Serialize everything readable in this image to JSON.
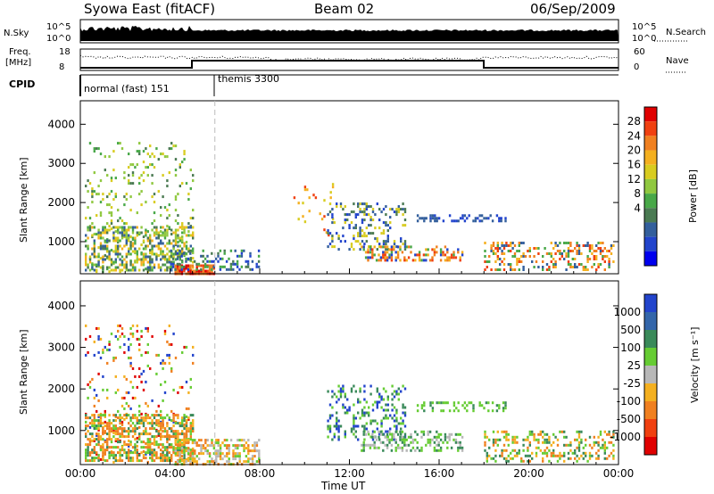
{
  "header": {
    "title": "Syowa East (fitACF)",
    "beam": "Beam 02",
    "date": "06/Sep/2009"
  },
  "nsky_panel": {
    "left_label": "N.Sky",
    "left_ticks": [
      "10^5",
      "10^0"
    ],
    "right_ticks": [
      "10^5",
      "10^0"
    ],
    "right_label": "N.Search"
  },
  "freq_panel": {
    "label_top": "Freq.",
    "label_bottom": "[MHz]",
    "left_ticks": [
      "18",
      "8"
    ],
    "right_ticks": [
      "60",
      "0"
    ],
    "right_label": "Nave"
  },
  "cpid_panel": {
    "label": "CPID",
    "modes": [
      {
        "name": "normal (fast) 151",
        "start_hour": 0
      },
      {
        "name": "themis 3300",
        "start_hour": 6
      }
    ]
  },
  "x_axis": {
    "label": "Time UT",
    "ticks": [
      "00:00",
      "04:00",
      "08:00",
      "12:00",
      "16:00",
      "20:00",
      "00:00"
    ],
    "range_hours": [
      0,
      24
    ]
  },
  "chart_data": [
    {
      "type": "heatmap",
      "name": "power",
      "ylabel": "Slant Range [km]",
      "ylim": [
        180,
        4600
      ],
      "yticks": [
        1000,
        2000,
        3000,
        4000
      ],
      "colorbar_label": "Power [dB]",
      "colorbar_ticks": [
        "28",
        "24",
        "20",
        "16",
        "12",
        "8",
        "4"
      ],
      "colorbar_colors": [
        "#e00000",
        "#f04010",
        "#f08020",
        "#f4b020",
        "#d8cc20",
        "#90c840",
        "#48a848",
        "#4a7a52",
        "#335f9c",
        "#2244cc",
        "#0000ee"
      ],
      "regions": [
        {
          "t": [
            0.2,
            5.0
          ],
          "r": [
            250,
            3550
          ],
          "density": 0.1,
          "colors": [
            6,
            7,
            5,
            4
          ]
        },
        {
          "t": [
            0.2,
            5.0
          ],
          "r": [
            300,
            1400
          ],
          "density": 0.45,
          "colors": [
            6,
            7,
            5,
            4,
            3,
            8
          ]
        },
        {
          "t": [
            4.2,
            6.0
          ],
          "r": [
            200,
            420
          ],
          "density": 0.85,
          "colors": [
            0,
            1,
            2
          ]
        },
        {
          "t": [
            4.0,
            8.0
          ],
          "r": [
            300,
            800
          ],
          "density": 0.3,
          "colors": [
            8,
            9,
            6,
            7
          ]
        },
        {
          "t": [
            9.5,
            11.5
          ],
          "r": [
            1200,
            2500
          ],
          "density": 0.05,
          "colors": [
            3,
            4,
            1
          ]
        },
        {
          "t": [
            11.0,
            14.5
          ],
          "r": [
            800,
            2000
          ],
          "density": 0.25,
          "colors": [
            8,
            9,
            7,
            4
          ]
        },
        {
          "t": [
            12.5,
            17.0
          ],
          "r": [
            500,
            900
          ],
          "density": 0.35,
          "colors": [
            1,
            2,
            3,
            9,
            6
          ]
        },
        {
          "t": [
            15.0,
            19.0
          ],
          "r": [
            1500,
            1700
          ],
          "density": 0.4,
          "colors": [
            8,
            9
          ]
        },
        {
          "t": [
            18.0,
            23.8
          ],
          "r": [
            250,
            1000
          ],
          "density": 0.35,
          "colors": [
            1,
            2,
            3,
            8,
            6
          ]
        }
      ]
    },
    {
      "type": "heatmap",
      "name": "velocity",
      "ylabel": "Slant Range [km]",
      "ylim": [
        180,
        4600
      ],
      "yticks": [
        1000,
        2000,
        3000,
        4000
      ],
      "colorbar_label": "Velocity [m s⁻¹]",
      "colorbar_ticks": [
        "1000",
        "500",
        "100",
        "25",
        "-25",
        "-100",
        "-500",
        "-1000"
      ],
      "colorbar_colors": [
        "#2244cc",
        "#3366aa",
        "#3a8a5a",
        "#66cc33",
        "#b8b8b8",
        "#f4b020",
        "#f08020",
        "#f04010",
        "#e00000"
      ],
      "regions": [
        {
          "t": [
            0.2,
            5.0
          ],
          "r": [
            250,
            3550
          ],
          "density": 0.1,
          "colors": [
            0,
            3,
            5,
            6,
            8
          ]
        },
        {
          "t": [
            0.2,
            5.0
          ],
          "r": [
            300,
            1400
          ],
          "density": 0.55,
          "colors": [
            5,
            6,
            6,
            3,
            2
          ]
        },
        {
          "t": [
            4.2,
            8.0
          ],
          "r": [
            200,
            800
          ],
          "density": 0.55,
          "colors": [
            5,
            6,
            3,
            4
          ]
        },
        {
          "t": [
            11.0,
            14.5
          ],
          "r": [
            800,
            2100
          ],
          "density": 0.25,
          "colors": [
            3,
            2,
            0
          ]
        },
        {
          "t": [
            12.5,
            17.0
          ],
          "r": [
            500,
            1000
          ],
          "density": 0.35,
          "colors": [
            3,
            2,
            4
          ]
        },
        {
          "t": [
            15.0,
            19.0
          ],
          "r": [
            1500,
            1700
          ],
          "density": 0.4,
          "colors": [
            3,
            2
          ]
        },
        {
          "t": [
            18.0,
            23.8
          ],
          "r": [
            250,
            1000
          ],
          "density": 0.35,
          "colors": [
            3,
            2,
            5,
            6
          ]
        }
      ]
    }
  ]
}
